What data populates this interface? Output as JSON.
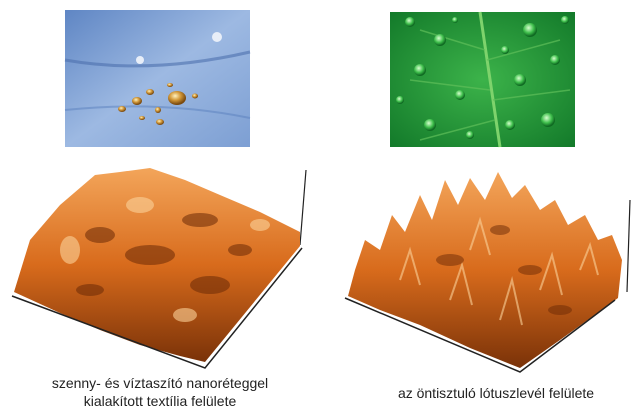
{
  "panels": [
    {
      "caption_lines": [
        "szenny- és víztaszító nanoréteggel",
        "kialakított textília felülete"
      ]
    },
    {
      "caption_lines": [
        "az öntisztuló lótuszlevél felülete"
      ]
    }
  ]
}
